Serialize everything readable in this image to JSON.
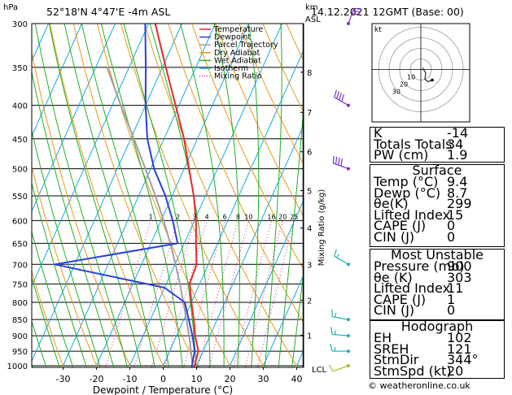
{
  "header": {
    "hpa_label": "hPa",
    "location": "52°18'N  4°47'E  -4m  ASL",
    "km_label": "km",
    "asl_label": "ASL",
    "datetime": "14.12.2021  12GMT  (Base: 00)"
  },
  "legend": [
    "Temperature",
    "Dewpoint",
    "Parcel Trajectory",
    "Dry Adiabat",
    "Wet Adiabat",
    "Isotherm",
    "Mixing Ratio"
  ],
  "colors": {
    "temperature": "#e8282a",
    "dewpoint": "#2a3fdd",
    "parcel": "#a0a0a0",
    "dry_adiabat": "#e69a1a",
    "wet_adiabat": "#21b021",
    "isotherm": "#16a8e0",
    "mixing_ratio": "#d4208e",
    "wind": "#7a2fc8",
    "wind_low": "#17b2b2",
    "wind_sfc": "#9bc416"
  },
  "chart_data": {
    "type": "skew-t",
    "xlabel": "Dewpoint / Temperature (°C)",
    "ylabel_right": "Mixing Ratio (g/kg)",
    "x_ticks": [
      -30,
      -20,
      -10,
      0,
      10,
      20,
      30,
      40
    ],
    "pressure_levels": [
      300,
      350,
      400,
      450,
      500,
      550,
      600,
      650,
      700,
      750,
      800,
      850,
      900,
      950,
      1000
    ],
    "km_ticks": [
      "1",
      "2",
      "3",
      "4",
      "5",
      "6",
      "7",
      "8"
    ],
    "lcl_label": "LCL",
    "mixing_ratio_labels": [
      "1",
      "2",
      "3",
      "4",
      "6",
      "8",
      "10",
      "16",
      "20",
      "25"
    ],
    "temperature": [
      {
        "p": 1014,
        "t": 9.4
      },
      {
        "p": 1000,
        "t": 9.4
      },
      {
        "p": 950,
        "t": 8.6
      },
      {
        "p": 900,
        "t": 5.6
      },
      {
        "p": 850,
        "t": 3.0
      },
      {
        "p": 800,
        "t": 0.0
      },
      {
        "p": 750,
        "t": -3.0
      },
      {
        "p": 700,
        "t": -3.5
      },
      {
        "p": 650,
        "t": -6.5
      },
      {
        "p": 600,
        "t": -9.5
      },
      {
        "p": 550,
        "t": -13.5
      },
      {
        "p": 500,
        "t": -18.5
      },
      {
        "p": 450,
        "t": -24.0
      },
      {
        "p": 400,
        "t": -31.0
      },
      {
        "p": 350,
        "t": -39.0
      },
      {
        "p": 300,
        "t": -48.0
      }
    ],
    "dewpoint": [
      {
        "p": 1014,
        "t": 8.7
      },
      {
        "p": 1000,
        "t": 8.6
      },
      {
        "p": 950,
        "t": 7.5
      },
      {
        "p": 900,
        "t": 4.8
      },
      {
        "p": 850,
        "t": 1.5
      },
      {
        "p": 800,
        "t": -2.0
      },
      {
        "p": 760,
        "t": -10.0
      },
      {
        "p": 700,
        "t": -46.0
      },
      {
        "p": 650,
        "t": -12.0
      },
      {
        "p": 600,
        "t": -16.5
      },
      {
        "p": 550,
        "t": -22.0
      },
      {
        "p": 500,
        "t": -29.0
      },
      {
        "p": 450,
        "t": -35.0
      },
      {
        "p": 400,
        "t": -40.0
      },
      {
        "p": 350,
        "t": -45.0
      },
      {
        "p": 300,
        "t": -51.0
      }
    ],
    "parcel": [
      {
        "p": 1014,
        "t": 9.4
      },
      {
        "p": 1000,
        "t": 8.8
      },
      {
        "p": 950,
        "t": 6.4
      },
      {
        "p": 900,
        "t": 3.8
      },
      {
        "p": 850,
        "t": 0.8
      },
      {
        "p": 800,
        "t": -2.4
      },
      {
        "p": 750,
        "t": -5.9
      },
      {
        "p": 700,
        "t": -9.8
      },
      {
        "p": 650,
        "t": -14.2
      },
      {
        "p": 600,
        "t": -19.2
      },
      {
        "p": 550,
        "t": -25.0
      },
      {
        "p": 500,
        "t": -31.6
      },
      {
        "p": 450,
        "t": -39.0
      },
      {
        "p": 400,
        "t": -47.4
      },
      {
        "p": 350,
        "t": -56.6
      }
    ]
  },
  "hodograph": {
    "label": "kt",
    "ring_labels": [
      "10",
      "20",
      "30"
    ]
  },
  "indices": {
    "rows": [
      {
        "k": "K",
        "v": "-14"
      },
      {
        "k": "Totals Totals",
        "v": "34"
      },
      {
        "k": "PW (cm)",
        "v": "1.9"
      }
    ]
  },
  "surface": {
    "title": "Surface",
    "rows": [
      {
        "k": "Temp (°C)",
        "v": "9.4"
      },
      {
        "k": "Dewp (°C)",
        "v": "8.7"
      },
      {
        "k": "θe(K)",
        "v": "299"
      },
      {
        "k": "Lifted Index",
        "v": "15"
      },
      {
        "k": "CAPE (J)",
        "v": "0"
      },
      {
        "k": "CIN (J)",
        "v": "0"
      }
    ]
  },
  "unstable": {
    "title": "Most Unstable",
    "rows": [
      {
        "k": "Pressure (mb)",
        "v": "900"
      },
      {
        "k": "θe (K)",
        "v": "303"
      },
      {
        "k": "Lifted Index",
        "v": "11"
      },
      {
        "k": "CAPE (J)",
        "v": "1"
      },
      {
        "k": "CIN (J)",
        "v": "0"
      }
    ]
  },
  "hodo_table": {
    "title": "Hodograph",
    "rows": [
      {
        "k": "EH",
        "v": "102"
      },
      {
        "k": "SREH",
        "v": "121"
      },
      {
        "k": "StmDir",
        "v": "344°"
      },
      {
        "k": "StmSpd (kt)",
        "v": "20"
      }
    ]
  },
  "footer": "© weatheronline.co.uk"
}
